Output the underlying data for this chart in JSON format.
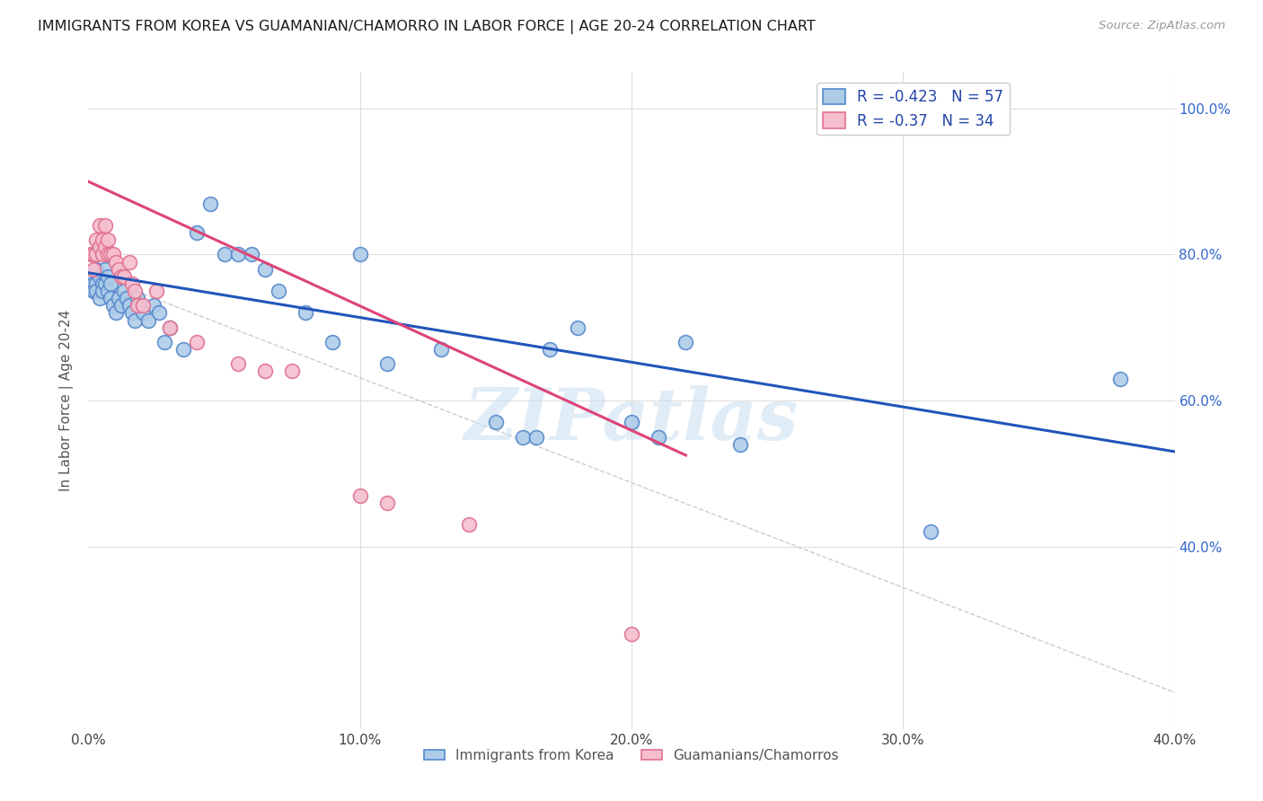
{
  "title": "IMMIGRANTS FROM KOREA VS GUAMANIAN/CHAMORRO IN LABOR FORCE | AGE 20-24 CORRELATION CHART",
  "source": "Source: ZipAtlas.com",
  "ylabel": "In Labor Force | Age 20-24",
  "xlim": [
    0.0,
    0.4
  ],
  "ylim": [
    0.15,
    1.05
  ],
  "xtick_labels": [
    "0.0%",
    "10.0%",
    "20.0%",
    "30.0%",
    "40.0%"
  ],
  "xtick_values": [
    0.0,
    0.1,
    0.2,
    0.3,
    0.4
  ],
  "ytick_labels": [
    "40.0%",
    "60.0%",
    "80.0%",
    "100.0%"
  ],
  "ytick_values": [
    0.4,
    0.6,
    0.8,
    1.0
  ],
  "korea_color": "#aecce8",
  "korea_edge_color": "#5588cc",
  "guam_color": "#f5bfcf",
  "guam_edge_color": "#e07090",
  "korea_R": -0.423,
  "korea_N": 57,
  "guam_R": -0.37,
  "guam_N": 34,
  "korea_line_color": "#2255bb",
  "guam_line_color": "#dd4477",
  "trend_line_color": "#cccccc",
  "watermark": "ZIPatlas",
  "korea_line_x0": 0.0,
  "korea_line_y0": 0.775,
  "korea_line_x1": 0.4,
  "korea_line_y1": 0.53,
  "guam_line_x0": 0.0,
  "guam_line_y0": 0.9,
  "guam_line_x1": 0.22,
  "guam_line_y1": 0.525,
  "dash_line_x0": 0.0,
  "dash_line_y0": 0.775,
  "dash_line_x1": 0.4,
  "dash_line_y1": 0.2,
  "korea_x": [
    0.001,
    0.002,
    0.002,
    0.003,
    0.003,
    0.003,
    0.004,
    0.004,
    0.005,
    0.005,
    0.006,
    0.006,
    0.007,
    0.007,
    0.008,
    0.008,
    0.009,
    0.01,
    0.011,
    0.012,
    0.013,
    0.014,
    0.015,
    0.016,
    0.017,
    0.018,
    0.019,
    0.02,
    0.022,
    0.024,
    0.026,
    0.028,
    0.03,
    0.035,
    0.04,
    0.045,
    0.05,
    0.055,
    0.06,
    0.065,
    0.07,
    0.08,
    0.09,
    0.1,
    0.11,
    0.13,
    0.15,
    0.16,
    0.165,
    0.17,
    0.18,
    0.2,
    0.21,
    0.22,
    0.24,
    0.38,
    0.31
  ],
  "korea_y": [
    0.77,
    0.76,
    0.75,
    0.78,
    0.76,
    0.75,
    0.77,
    0.74,
    0.76,
    0.75,
    0.78,
    0.76,
    0.77,
    0.75,
    0.76,
    0.74,
    0.73,
    0.72,
    0.74,
    0.73,
    0.75,
    0.74,
    0.73,
    0.72,
    0.71,
    0.74,
    0.73,
    0.72,
    0.71,
    0.73,
    0.72,
    0.68,
    0.7,
    0.67,
    0.83,
    0.87,
    0.8,
    0.8,
    0.8,
    0.78,
    0.75,
    0.72,
    0.68,
    0.8,
    0.65,
    0.67,
    0.57,
    0.55,
    0.55,
    0.67,
    0.7,
    0.57,
    0.55,
    0.68,
    0.54,
    0.63,
    0.42
  ],
  "guam_x": [
    0.001,
    0.002,
    0.002,
    0.003,
    0.003,
    0.004,
    0.004,
    0.005,
    0.005,
    0.006,
    0.006,
    0.007,
    0.007,
    0.008,
    0.009,
    0.01,
    0.011,
    0.012,
    0.013,
    0.015,
    0.016,
    0.017,
    0.018,
    0.02,
    0.025,
    0.03,
    0.04,
    0.055,
    0.065,
    0.075,
    0.1,
    0.11,
    0.14,
    0.2
  ],
  "guam_y": [
    0.8,
    0.78,
    0.8,
    0.82,
    0.8,
    0.84,
    0.81,
    0.82,
    0.8,
    0.84,
    0.81,
    0.8,
    0.82,
    0.8,
    0.8,
    0.79,
    0.78,
    0.77,
    0.77,
    0.79,
    0.76,
    0.75,
    0.73,
    0.73,
    0.75,
    0.7,
    0.68,
    0.65,
    0.64,
    0.64,
    0.47,
    0.46,
    0.43,
    0.28
  ]
}
